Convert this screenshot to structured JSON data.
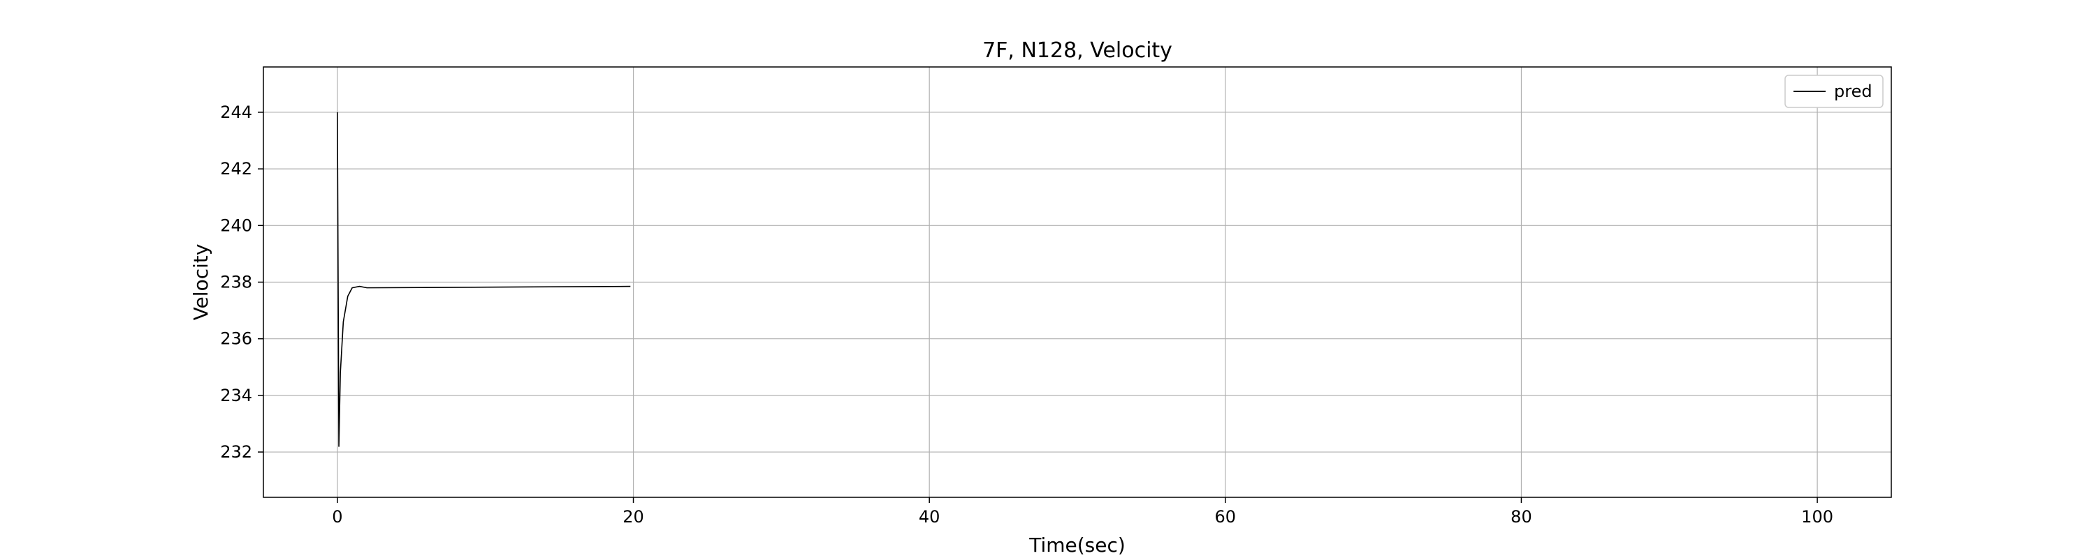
{
  "chart_data": {
    "type": "line",
    "title": "7F, N128, Velocity",
    "xlabel": "Time(sec)",
    "ylabel": "Velocity",
    "xlim": [
      -5,
      105
    ],
    "ylim": [
      230.4,
      245.6
    ],
    "xticks": [
      0,
      20,
      40,
      60,
      80,
      100
    ],
    "yticks": [
      232,
      234,
      236,
      238,
      240,
      242,
      244
    ],
    "grid": true,
    "legend_position": "top-right",
    "series": [
      {
        "name": "pred",
        "color": "#000000",
        "x": [
          0.0,
          0.1,
          0.2,
          0.4,
          0.7,
          1.0,
          1.5,
          2.0,
          19.8
        ],
        "y": [
          244.0,
          232.2,
          234.8,
          236.6,
          237.5,
          237.8,
          237.85,
          237.8,
          237.85
        ]
      }
    ]
  }
}
